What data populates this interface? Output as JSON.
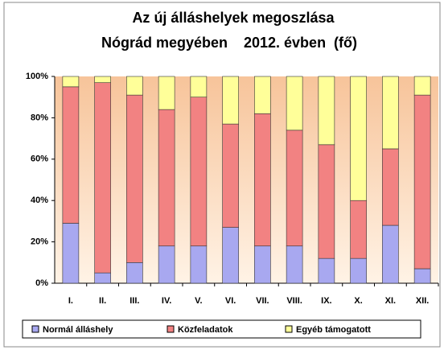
{
  "chart_data": {
    "type": "stacked_bar_100",
    "title": "Az új álláshelyek megoszlása",
    "subtitle": "Nógrád megyében    2012. évben  (fő)",
    "categories": [
      "I.",
      "II.",
      "III.",
      "IV.",
      "V.",
      "VI.",
      "VII.",
      "VIII.",
      "IX.",
      "X.",
      "XI.",
      "XII."
    ],
    "series": [
      {
        "name": "Normál álláshely",
        "color": "#a8a8f0",
        "values": [
          29,
          5,
          10,
          18,
          18,
          27,
          18,
          18,
          12,
          12,
          28,
          7
        ]
      },
      {
        "name": "Közfeladatok",
        "color": "#f28282",
        "values": [
          66,
          92,
          81,
          66,
          72,
          50,
          64,
          56,
          55,
          28,
          37,
          84
        ]
      },
      {
        "name": "Egyéb támogatott",
        "color": "#ffff99",
        "values": [
          5,
          3,
          9,
          16,
          10,
          23,
          18,
          26,
          33,
          60,
          35,
          9
        ]
      }
    ],
    "ylim": [
      0,
      100
    ],
    "yticks": [
      {
        "value": 0,
        "label": "0%"
      },
      {
        "value": 20,
        "label": "20%"
      },
      {
        "value": 40,
        "label": "40%"
      },
      {
        "value": 60,
        "label": "60%"
      },
      {
        "value": 80,
        "label": "80%"
      },
      {
        "value": 100,
        "label": "100%"
      }
    ],
    "legend": "bottom"
  }
}
